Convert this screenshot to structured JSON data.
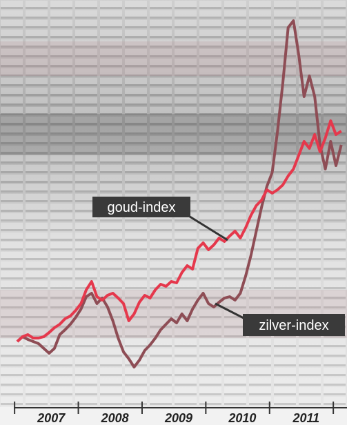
{
  "chart_data": {
    "type": "line",
    "categories": [
      null,
      null,
      null,
      null,
      null,
      null,
      "2007",
      null,
      null,
      null,
      null,
      null,
      null,
      null,
      null,
      null,
      null,
      null,
      "2008",
      null,
      null,
      null,
      null,
      null,
      null,
      null,
      null,
      null,
      null,
      null,
      "2009",
      null,
      null,
      null,
      null,
      null,
      null,
      null,
      null,
      null,
      null,
      null,
      "2010",
      null,
      null,
      null,
      null,
      null,
      null,
      null,
      null,
      null,
      null,
      null,
      "2011",
      null,
      null,
      null,
      null,
      null,
      null,
      null
    ],
    "series": [
      {
        "name": "goud-index",
        "color": "#e5384c",
        "values": [
          21,
          22.4,
          23,
          22,
          22,
          22.4,
          23.6,
          25,
          26,
          27.6,
          28.4,
          30,
          32,
          36,
          38.4,
          34,
          33,
          34.4,
          35,
          33.6,
          32,
          27,
          29,
          32.4,
          34.4,
          33.6,
          36,
          37.6,
          37,
          38.4,
          38,
          41,
          43,
          42,
          48,
          49.6,
          47.6,
          49,
          51,
          50,
          51.6,
          53,
          51,
          54,
          57.6,
          60.4,
          62,
          65,
          64,
          65,
          66.4,
          69,
          71,
          75,
          79,
          77,
          81,
          76,
          80,
          85,
          81,
          82
        ]
      },
      {
        "name": "zilver-index",
        "color": "#8e4d55",
        "values": [
          21,
          22.4,
          21.6,
          21,
          20.4,
          19,
          17.6,
          19,
          23,
          24.4,
          26,
          28,
          30.4,
          34,
          35,
          32,
          33.6,
          31,
          27,
          22,
          18,
          16,
          13.6,
          15.6,
          18.4,
          20,
          22,
          24.4,
          26,
          27.6,
          26.4,
          29,
          27,
          30.4,
          33,
          35,
          32,
          31,
          32.4,
          33.6,
          34,
          33,
          35,
          40,
          46,
          53,
          60,
          66,
          70,
          82,
          96,
          112,
          114,
          104,
          92,
          98,
          92,
          78,
          71,
          79,
          72,
          78
        ]
      }
    ],
    "ylim": [
      0,
      120
    ]
  }
}
